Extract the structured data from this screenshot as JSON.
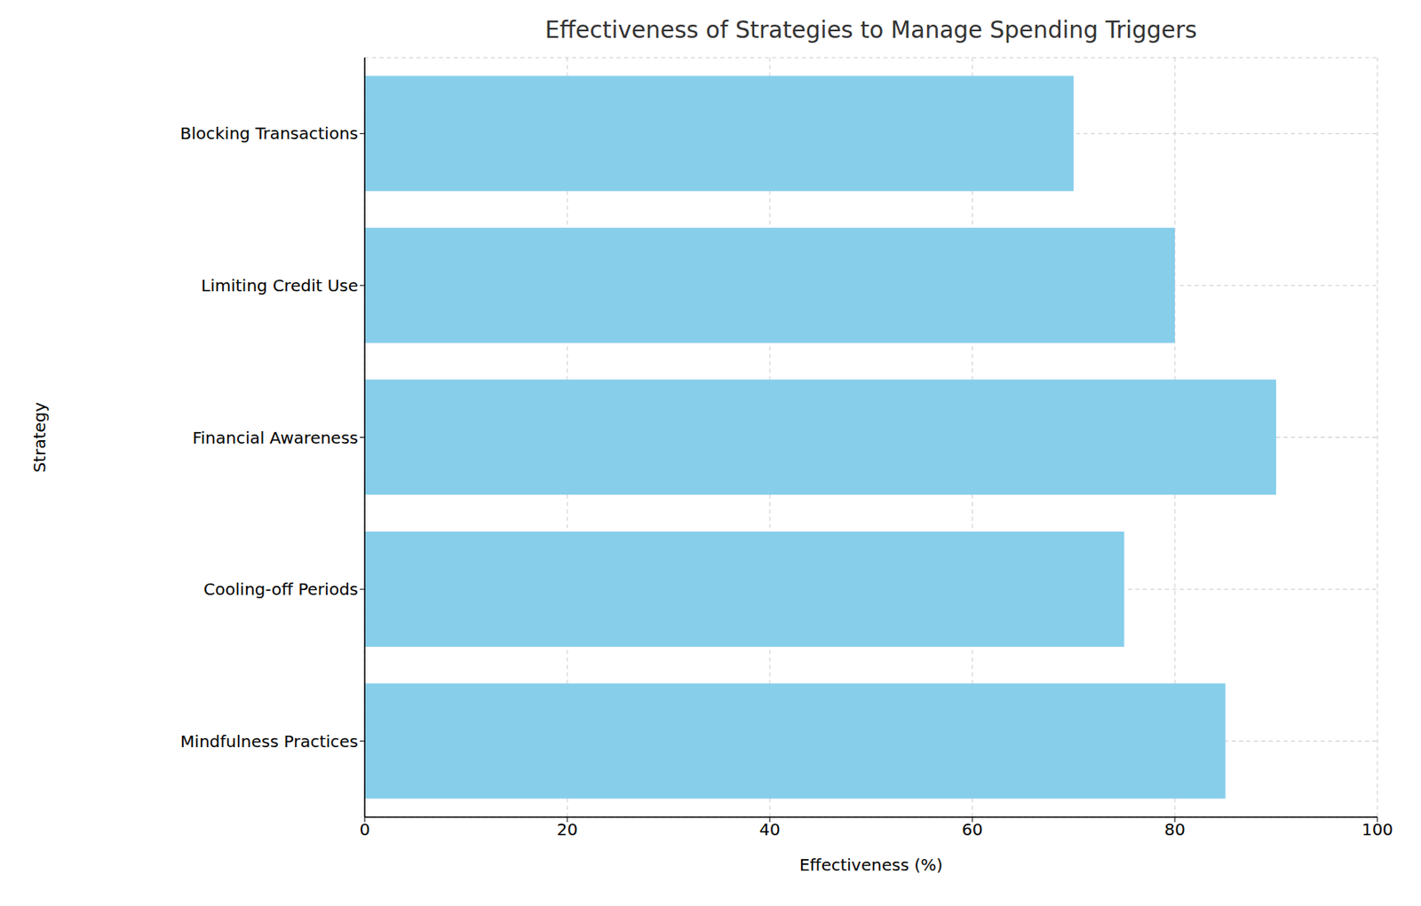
{
  "chart_data": {
    "type": "bar",
    "title": "Effectiveness of Strategies to Manage Spending Triggers",
    "x_label": "Effectiveness (%)",
    "y_label": "Strategy",
    "orientation": "horizontal",
    "categories": [
      "Mindfulness Practices",
      "Cooling-off Periods",
      "Financial Awareness",
      "Limiting Credit Use",
      "Blocking Transactions"
    ],
    "values": [
      85,
      75,
      90,
      80,
      70
    ],
    "color": "#87ceeb",
    "xlim": [
      0,
      100
    ],
    "xticks": [
      0,
      20,
      40,
      60,
      80,
      100
    ],
    "grid": true
  }
}
